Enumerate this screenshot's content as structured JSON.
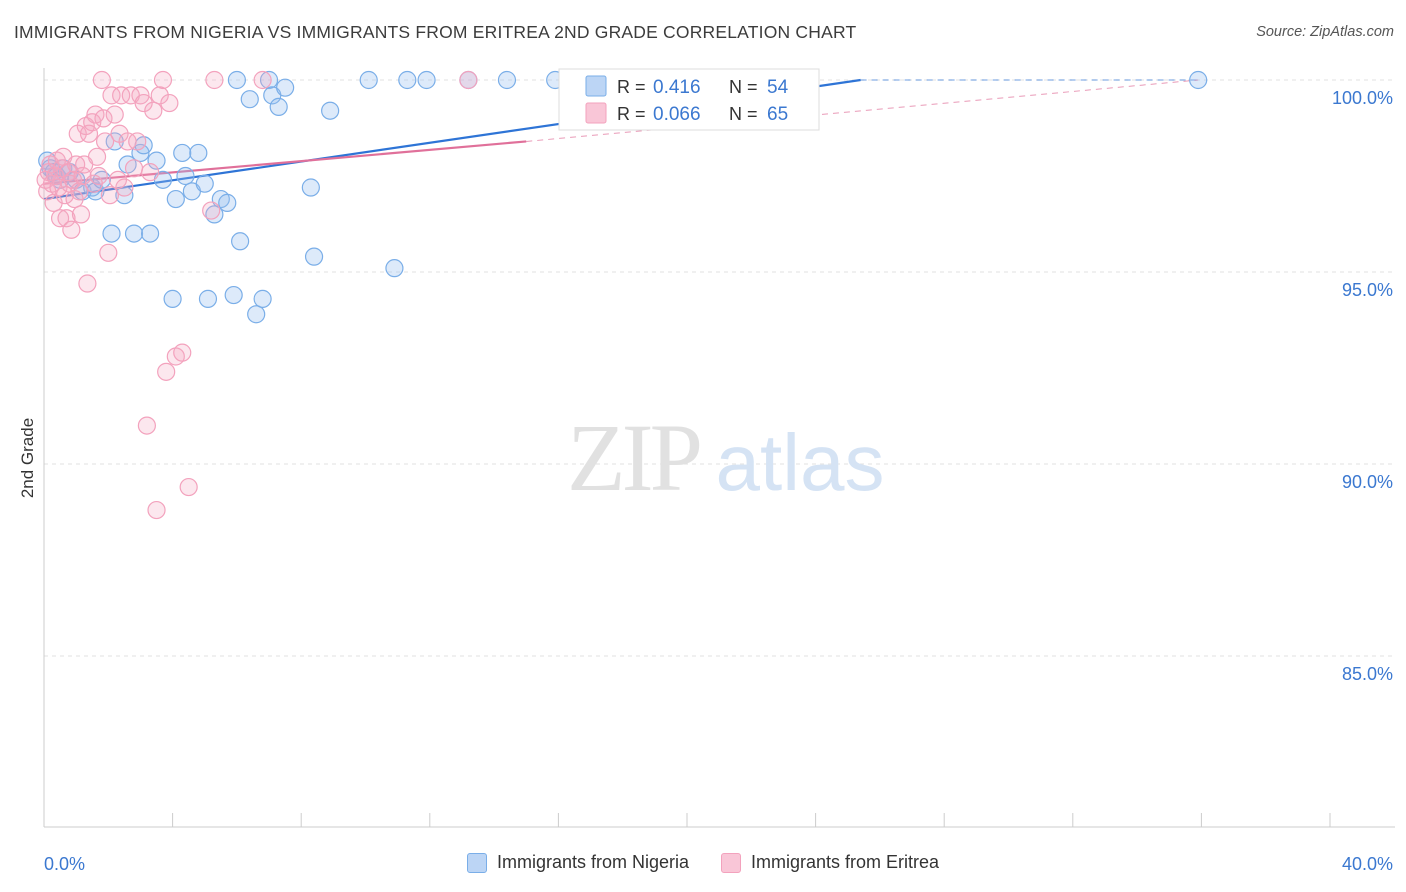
{
  "header": {
    "title": "IMMIGRANTS FROM NIGERIA VS IMMIGRANTS FROM ERITREA 2ND GRADE CORRELATION CHART",
    "source": "Source: ZipAtlas.com"
  },
  "watermark": {
    "zip": "ZIP",
    "atlas": "atlas"
  },
  "chart_data": {
    "type": "scatter",
    "title": "IMMIGRANTS FROM NIGERIA VS IMMIGRANTS FROM ERITREA 2ND GRADE CORRELATION CHART",
    "ylabel": "2nd Grade",
    "xlabel": "",
    "xlim": [
      0,
      40
    ],
    "ylim": [
      80.5,
      100.3
    ],
    "x_tick_labels": [
      "0.0%",
      "40.0%"
    ],
    "y_ticks": [
      100,
      95,
      90,
      85
    ],
    "y_tick_labels": [
      "100.0%",
      "95.0%",
      "90.0%",
      "85.0%"
    ],
    "grid": true,
    "legend_placement": "top-center",
    "series": [
      {
        "name": "Immigrants from Nigeria",
        "color": "#7aaee8",
        "line_color": "#2e74d6",
        "R": "0.416",
        "N": "54",
        "trend": {
          "x": [
            0,
            25.4
          ],
          "y": [
            96.9,
            100.0
          ]
        },
        "trend_dashed": {
          "x": [
            25.4,
            35.9
          ],
          "y": [
            100.0,
            100.0
          ]
        },
        "points": [
          [
            0.1,
            97.9
          ],
          [
            0.2,
            97.7
          ],
          [
            0.3,
            97.6
          ],
          [
            0.4,
            97.5
          ],
          [
            0.5,
            97.4
          ],
          [
            0.6,
            97.7
          ],
          [
            0.8,
            97.6
          ],
          [
            1.0,
            97.4
          ],
          [
            1.2,
            97.1
          ],
          [
            1.5,
            97.2
          ],
          [
            1.6,
            97.1
          ],
          [
            1.8,
            97.4
          ],
          [
            2.1,
            96.0
          ],
          [
            2.2,
            98.4
          ],
          [
            2.5,
            97.0
          ],
          [
            2.6,
            97.8
          ],
          [
            2.8,
            96.0
          ],
          [
            3.0,
            98.1
          ],
          [
            3.1,
            98.3
          ],
          [
            3.3,
            96.0
          ],
          [
            3.5,
            97.9
          ],
          [
            3.7,
            97.4
          ],
          [
            4.0,
            94.3
          ],
          [
            4.1,
            96.9
          ],
          [
            4.3,
            98.1
          ],
          [
            4.4,
            97.5
          ],
          [
            4.6,
            97.1
          ],
          [
            4.8,
            98.1
          ],
          [
            5.0,
            97.3
          ],
          [
            5.1,
            94.3
          ],
          [
            5.3,
            96.5
          ],
          [
            5.5,
            96.9
          ],
          [
            5.7,
            96.8
          ],
          [
            5.9,
            94.4
          ],
          [
            6.0,
            100.0
          ],
          [
            6.1,
            95.8
          ],
          [
            6.4,
            99.5
          ],
          [
            6.6,
            93.9
          ],
          [
            6.8,
            94.3
          ],
          [
            7.0,
            100.0
          ],
          [
            7.1,
            99.6
          ],
          [
            7.3,
            99.3
          ],
          [
            7.5,
            99.8
          ],
          [
            8.3,
            97.2
          ],
          [
            8.4,
            95.4
          ],
          [
            8.9,
            99.2
          ],
          [
            10.1,
            100.0
          ],
          [
            10.9,
            95.1
          ],
          [
            11.3,
            100.0
          ],
          [
            11.9,
            100.0
          ],
          [
            13.2,
            100.0
          ],
          [
            14.4,
            100.0
          ],
          [
            15.9,
            100.0
          ],
          [
            35.9,
            100.0
          ]
        ]
      },
      {
        "name": "Immigrants from Eritrea",
        "color": "#f3a2bd",
        "line_color": "#e0709a",
        "R": "0.066",
        "N": "65",
        "trend": {
          "x": [
            0,
            15.0
          ],
          "y": [
            97.3,
            98.4
          ]
        },
        "trend_dashed": {
          "x": [
            15.0,
            35.9
          ],
          "y": [
            98.4,
            100.0
          ]
        },
        "points": [
          [
            0.05,
            97.4
          ],
          [
            0.1,
            97.1
          ],
          [
            0.15,
            97.6
          ],
          [
            0.2,
            97.8
          ],
          [
            0.25,
            97.3
          ],
          [
            0.3,
            96.8
          ],
          [
            0.35,
            97.5
          ],
          [
            0.4,
            97.9
          ],
          [
            0.45,
            97.2
          ],
          [
            0.5,
            96.4
          ],
          [
            0.55,
            97.7
          ],
          [
            0.6,
            98.0
          ],
          [
            0.65,
            97.0
          ],
          [
            0.7,
            96.4
          ],
          [
            0.75,
            97.6
          ],
          [
            0.8,
            97.3
          ],
          [
            0.85,
            96.1
          ],
          [
            0.9,
            97.4
          ],
          [
            0.95,
            96.9
          ],
          [
            1.0,
            97.8
          ],
          [
            1.05,
            98.6
          ],
          [
            1.1,
            97.1
          ],
          [
            1.15,
            96.5
          ],
          [
            1.2,
            97.5
          ],
          [
            1.25,
            97.8
          ],
          [
            1.3,
            98.8
          ],
          [
            1.35,
            94.7
          ],
          [
            1.4,
            98.6
          ],
          [
            1.5,
            98.9
          ],
          [
            1.55,
            97.3
          ],
          [
            1.6,
            99.1
          ],
          [
            1.65,
            98.0
          ],
          [
            1.7,
            97.5
          ],
          [
            1.8,
            100.0
          ],
          [
            1.85,
            99.0
          ],
          [
            1.9,
            98.4
          ],
          [
            2.0,
            95.5
          ],
          [
            2.05,
            97.0
          ],
          [
            2.1,
            99.6
          ],
          [
            2.2,
            99.1
          ],
          [
            2.3,
            97.4
          ],
          [
            2.35,
            98.6
          ],
          [
            2.4,
            99.6
          ],
          [
            2.5,
            97.2
          ],
          [
            2.6,
            98.4
          ],
          [
            2.7,
            99.6
          ],
          [
            2.8,
            97.7
          ],
          [
            2.9,
            98.4
          ],
          [
            3.0,
            99.6
          ],
          [
            3.1,
            99.4
          ],
          [
            3.2,
            91.0
          ],
          [
            3.3,
            97.6
          ],
          [
            3.4,
            99.2
          ],
          [
            3.5,
            88.8
          ],
          [
            3.6,
            99.6
          ],
          [
            3.7,
            100.0
          ],
          [
            3.8,
            92.4
          ],
          [
            3.9,
            99.4
          ],
          [
            4.1,
            92.8
          ],
          [
            4.3,
            92.9
          ],
          [
            4.5,
            89.4
          ],
          [
            5.2,
            96.6
          ],
          [
            5.3,
            100.0
          ],
          [
            6.8,
            100.0
          ],
          [
            13.2,
            100.0
          ]
        ]
      }
    ]
  },
  "legend": {
    "r_label": "R =",
    "n_label": "N =",
    "items": [
      {
        "r": "0.416",
        "n": "54"
      },
      {
        "r": "0.066",
        "n": "65"
      }
    ]
  },
  "bottom_legend": {
    "items": [
      "Immigrants from Nigeria",
      "Immigrants from Eritrea"
    ]
  }
}
